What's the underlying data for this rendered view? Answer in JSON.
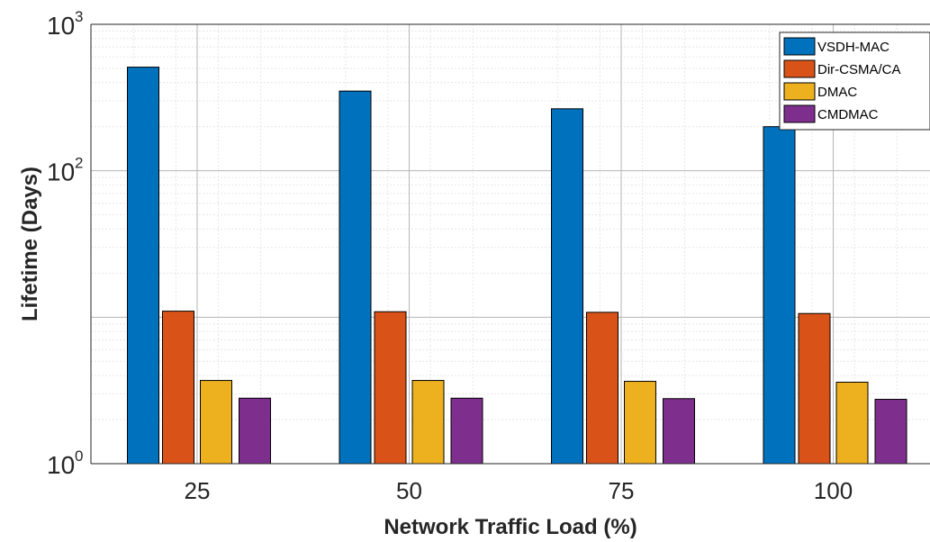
{
  "chart_data": {
    "type": "bar",
    "yscale": "log",
    "ylim": [
      1,
      1000
    ],
    "yticks": [
      {
        "value": 1,
        "base": "10",
        "exp": "0"
      },
      {
        "value": 100,
        "base": "10",
        "exp": "2"
      },
      {
        "value": 1000,
        "base": "10",
        "exp": "3"
      }
    ],
    "categories": [
      "25",
      "50",
      "75",
      "100"
    ],
    "xlabel": "Network Traffic Load (%)",
    "ylabel": "Lifetime (Days)",
    "grid": true,
    "legend_position": "top-right",
    "series": [
      {
        "name": "VSDH-MAC",
        "color": "#0072BD",
        "values": [
          510,
          350,
          265,
          200
        ]
      },
      {
        "name": "Dir-CSMA/CA",
        "color": "#D95319",
        "values": [
          11.0,
          10.9,
          10.8,
          10.6
        ]
      },
      {
        "name": "DMAC",
        "color": "#EDB120",
        "values": [
          3.7,
          3.7,
          3.65,
          3.6
        ]
      },
      {
        "name": "CMDMAC",
        "color": "#7E2F8E",
        "values": [
          2.8,
          2.8,
          2.78,
          2.75
        ]
      }
    ]
  }
}
